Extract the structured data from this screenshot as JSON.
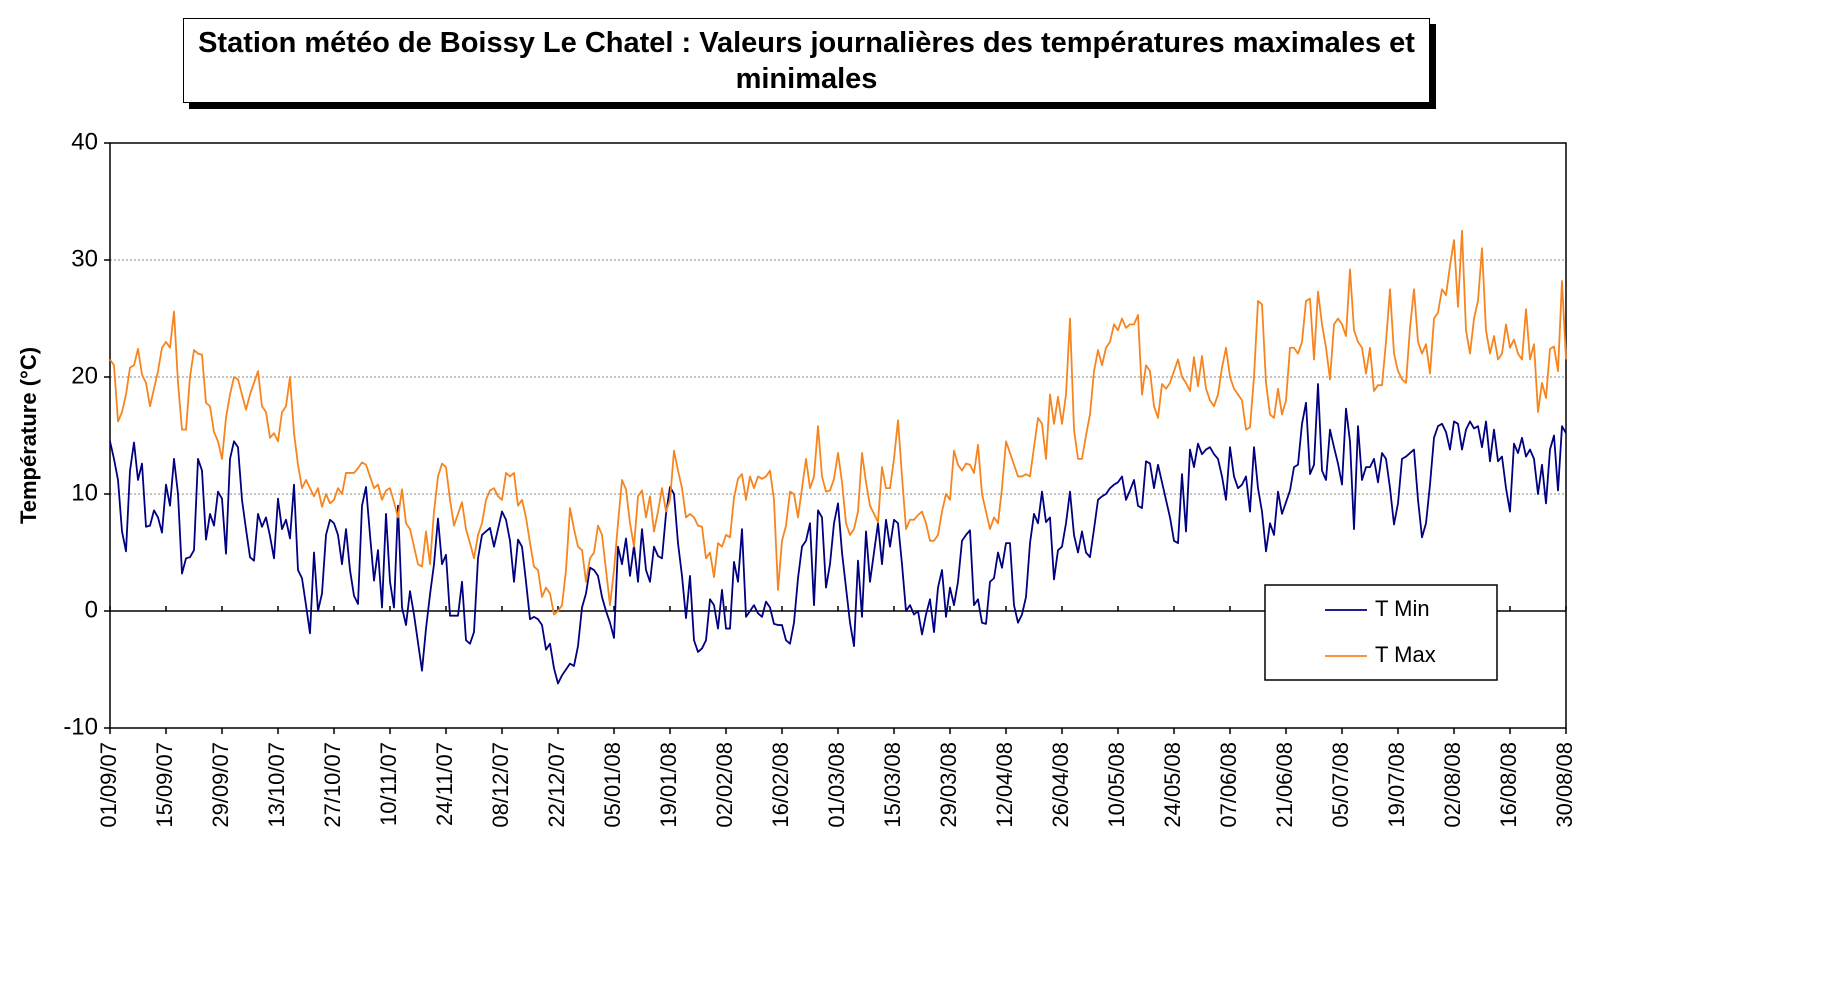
{
  "chart_data": {
    "type": "line",
    "title": "Station météo de Boissy Le Chatel : Valeurs journalières des températures maximales et minimales",
    "y_label": "Température (°C)",
    "ylim": [
      -10,
      40
    ],
    "yticks": [
      -10,
      0,
      10,
      20,
      30,
      40
    ],
    "grid": true,
    "legend": "lower right",
    "categories": [
      "01/09/07",
      null,
      null,
      null,
      null,
      null,
      null,
      null,
      null,
      null,
      null,
      null,
      null,
      null,
      "15/09/07",
      null,
      null,
      null,
      null,
      null,
      null,
      null,
      null,
      null,
      null,
      null,
      null,
      null,
      "29/09/07",
      null,
      null,
      null,
      null,
      null,
      null,
      null,
      null,
      null,
      null,
      null,
      null,
      null,
      "13/10/07",
      null,
      null,
      null,
      null,
      null,
      null,
      null,
      null,
      null,
      null,
      null,
      null,
      null,
      "27/10/07",
      null,
      null,
      null,
      null,
      null,
      null,
      null,
      null,
      null,
      null,
      null,
      null,
      null,
      "10/11/07",
      null,
      null,
      null,
      null,
      null,
      null,
      null,
      null,
      null,
      null,
      null,
      null,
      null,
      "24/11/07",
      null,
      null,
      null,
      null,
      null,
      null,
      null,
      null,
      null,
      null,
      null,
      null,
      null,
      "08/12/07",
      null,
      null,
      null,
      null,
      null,
      null,
      null,
      null,
      null,
      null,
      null,
      null,
      null,
      "22/12/07",
      null,
      null,
      null,
      null,
      null,
      null,
      null,
      null,
      null,
      null,
      null,
      null,
      null,
      "05/01/08",
      null,
      null,
      null,
      null,
      null,
      null,
      null,
      null,
      null,
      null,
      null,
      null,
      null,
      "19/01/08",
      null,
      null,
      null,
      null,
      null,
      null,
      null,
      null,
      null,
      null,
      null,
      null,
      null,
      "02/02/08",
      null,
      null,
      null,
      null,
      null,
      null,
      null,
      null,
      null,
      null,
      null,
      null,
      null,
      "16/02/08",
      null,
      null,
      null,
      null,
      null,
      null,
      null,
      null,
      null,
      null,
      null,
      null,
      null,
      "01/03/08",
      null,
      null,
      null,
      null,
      null,
      null,
      null,
      null,
      null,
      null,
      null,
      null,
      null,
      "15/03/08",
      null,
      null,
      null,
      null,
      null,
      null,
      null,
      null,
      null,
      null,
      null,
      null,
      null,
      "29/03/08",
      null,
      null,
      null,
      null,
      null,
      null,
      null,
      null,
      null,
      null,
      null,
      null,
      null,
      "12/04/08",
      null,
      null,
      null,
      null,
      null,
      null,
      null,
      null,
      null,
      null,
      null,
      null,
      null,
      "26/04/08",
      null,
      null,
      null,
      null,
      null,
      null,
      null,
      null,
      null,
      null,
      null,
      null,
      null,
      "10/05/08",
      null,
      null,
      null,
      null,
      null,
      null,
      null,
      null,
      null,
      null,
      null,
      null,
      null,
      "24/05/08",
      null,
      null,
      null,
      null,
      null,
      null,
      null,
      null,
      null,
      null,
      null,
      null,
      null,
      "07/06/08",
      null,
      null,
      null,
      null,
      null,
      null,
      null,
      null,
      null,
      null,
      null,
      null,
      null,
      "21/06/08",
      null,
      null,
      null,
      null,
      null,
      null,
      null,
      null,
      null,
      null,
      null,
      null,
      null,
      "05/07/08",
      null,
      null,
      null,
      null,
      null,
      null,
      null,
      null,
      null,
      null,
      null,
      null,
      null,
      "19/07/08",
      null,
      null,
      null,
      null,
      null,
      null,
      null,
      null,
      null,
      null,
      null,
      null,
      null,
      "02/08/08",
      null,
      null,
      null,
      null,
      null,
      null,
      null,
      null,
      null,
      null,
      null,
      null,
      null,
      "16/08/08",
      null,
      null,
      null,
      null,
      null,
      null,
      null,
      null,
      null,
      null,
      null,
      null,
      null,
      "30/08/08"
    ],
    "series": [
      {
        "name": "T Min",
        "color": "#000080",
        "values": [
          14.5,
          13,
          11.2,
          6.8,
          5.1,
          12,
          14.4,
          11.2,
          12.6,
          7.2,
          7.3,
          8.6,
          8,
          6.7,
          10.8,
          9,
          13,
          10,
          3.2,
          4.5,
          4.6,
          5.2,
          13,
          12,
          6.1,
          8.3,
          7.3,
          10.2,
          9.6,
          4.9,
          13,
          14.5,
          14,
          9.5,
          7,
          4.6,
          4.3,
          8.3,
          7.2,
          8,
          6.4,
          4.5,
          9.6,
          7,
          7.8,
          6.2,
          10.8,
          3.5,
          2.8,
          0.5,
          -1.9,
          5,
          0,
          1.5,
          6.5,
          7.8,
          7.5,
          6.5,
          4,
          7,
          3.5,
          1.3,
          0.6,
          9,
          10.6,
          6.5,
          2.6,
          5.2,
          0.3,
          8.3,
          2.5,
          0.3,
          9,
          0.3,
          -1.2,
          1.7,
          -0.3,
          -2.7,
          -5.1,
          -1.5,
          1.4,
          4,
          7.9,
          4,
          4.8,
          -0.4,
          -0.4,
          -0.4,
          2.5,
          -2.5,
          -2.8,
          -1.8,
          4.5,
          6.5,
          6.8,
          7.1,
          5.5,
          7,
          8.5,
          7.8,
          6,
          2.5,
          6.1,
          5.5,
          2.5,
          -0.7,
          -0.5,
          -0.7,
          -1.2,
          -3.3,
          -2.8,
          -4.9,
          -6.2,
          -5.5,
          -5,
          -4.5,
          -4.7,
          -3,
          0.3,
          1.5,
          3.7,
          3.5,
          3,
          1.2,
          0,
          -1,
          -2.3,
          5.5,
          4,
          6.2,
          3,
          5.6,
          2.5,
          7,
          3.5,
          2.5,
          5.5,
          4.7,
          4.5,
          8.3,
          10.6,
          10,
          5.8,
          3,
          -0.6,
          3,
          -2.5,
          -3.5,
          -3.2,
          -2.5,
          1,
          0.5,
          -1.5,
          1.8,
          -1.5,
          -1.5,
          4.2,
          2.5,
          7,
          -0.5,
          0,
          0.5,
          -0.2,
          -0.5,
          0.8,
          0.3,
          -1.1,
          -1.2,
          -1.2,
          -2.5,
          -2.8,
          -1,
          2.8,
          5.5,
          6,
          7.5,
          0.5,
          8.6,
          8,
          2,
          4,
          7.5,
          9.2,
          5,
          2,
          -1,
          -3,
          4.3,
          -0.5,
          6.8,
          2.5,
          5,
          7.5,
          4,
          7.8,
          5.5,
          7.8,
          7.5,
          4,
          0,
          0.5,
          -0.3,
          0,
          -2,
          -0.3,
          1,
          -1.8,
          2,
          3.5,
          -0.5,
          2,
          0.5,
          2.5,
          6,
          6.5,
          6.9,
          0.5,
          1,
          -1,
          -1.1,
          2.5,
          2.8,
          5,
          3.7,
          5.8,
          5.8,
          0.5,
          -1,
          -0.3,
          1.2,
          5.8,
          8.3,
          7.5,
          10.2,
          7.6,
          8,
          2.7,
          5.2,
          5.5,
          7.5,
          10.2,
          6.5,
          5,
          6.8,
          5,
          4.6,
          7,
          9.5,
          9.8,
          10,
          10.5,
          10.8,
          11,
          11.5,
          9.5,
          10.3,
          11.2,
          9,
          8.8,
          12.8,
          12.6,
          10.5,
          12.5,
          11,
          9.5,
          8,
          6,
          5.8,
          11.7,
          6.8,
          13.8,
          12.3,
          14.3,
          13.4,
          13.8,
          14,
          13.4,
          13,
          11.5,
          9.5,
          14,
          11.5,
          10.5,
          10.8,
          11.5,
          8.5,
          14,
          10.5,
          8.5,
          5.1,
          7.5,
          6.5,
          10.2,
          8.3,
          9.3,
          10.3,
          12.3,
          12.5,
          16,
          17.8,
          11.7,
          12.5,
          19.4,
          12,
          11.2,
          15.5,
          14,
          12.6,
          10.8,
          17.3,
          14.5,
          7,
          15.8,
          11.2,
          12.3,
          12.3,
          13,
          11,
          13.5,
          13,
          10.5,
          7.4,
          9.2,
          13,
          13.2,
          13.5,
          13.8,
          9.5,
          6.3,
          7.5,
          10.8,
          14.8,
          15.8,
          16,
          15.3,
          13.8,
          16.2,
          16,
          13.8,
          15.5,
          16.2,
          15.6,
          15.8,
          14,
          16.2,
          12.8,
          15.5,
          12.8,
          13.2,
          10.5,
          8.5,
          14.3,
          13.5,
          14.8,
          13.2,
          13.8,
          13,
          10,
          12.5,
          9.2,
          13.8,
          15,
          10.3,
          15.8,
          15.2
        ]
      },
      {
        "name": "T Max",
        "color": "#f7851f",
        "values": [
          21.5,
          21,
          16.2,
          17,
          18.5,
          20.8,
          21,
          22.4,
          20.2,
          19.5,
          17.5,
          19,
          20.5,
          22.5,
          23,
          22.5,
          25.6,
          19.5,
          15.5,
          15.5,
          20,
          22.3,
          22,
          21.9,
          17.8,
          17.5,
          15.3,
          14.5,
          13,
          16.5,
          18.5,
          20,
          19.8,
          18.5,
          17.2,
          18.5,
          19.5,
          20.5,
          17.5,
          17,
          14.8,
          15.2,
          14.5,
          17,
          17.5,
          20,
          15.2,
          12.5,
          10.5,
          11.2,
          10.5,
          9.8,
          10.5,
          8.9,
          10,
          9.2,
          9.5,
          10.5,
          10,
          11.8,
          11.8,
          11.8,
          12.2,
          12.7,
          12.5,
          11.5,
          10.5,
          10.8,
          9.5,
          10.3,
          10.5,
          9.3,
          8,
          10.4,
          7.5,
          7,
          5.5,
          4,
          3.8,
          6.8,
          4,
          8.5,
          11.5,
          12.6,
          12.3,
          9.5,
          7.3,
          8.3,
          9.3,
          7,
          5.8,
          4.5,
          6.5,
          7.5,
          9.5,
          10.3,
          10.5,
          9.8,
          9.5,
          11.8,
          11.5,
          11.8,
          9,
          9.5,
          8,
          5.8,
          3.8,
          3.5,
          1.2,
          2,
          1.5,
          -0.3,
          0,
          0.5,
          3.5,
          8.8,
          7,
          5.5,
          5.2,
          2.5,
          4.5,
          5,
          7.3,
          6.5,
          3.5,
          0.5,
          3.5,
          7.5,
          11.2,
          10.4,
          7.5,
          5.5,
          9.8,
          10.3,
          8,
          9.8,
          6.8,
          8.5,
          10.5,
          8.5,
          9.5,
          13.7,
          12,
          10.5,
          8,
          8.3,
          8,
          7.3,
          7.2,
          4.5,
          5,
          2.9,
          5.8,
          5.5,
          6.5,
          6.3,
          9.7,
          11.3,
          11.7,
          9.5,
          11.5,
          10.5,
          11.5,
          11.3,
          11.5,
          12,
          9.5,
          1.8,
          6,
          7.3,
          10.2,
          10,
          8,
          10.5,
          13,
          10.5,
          11.5,
          15.8,
          11.5,
          10.2,
          10.3,
          11.3,
          13.5,
          11,
          7.5,
          6.5,
          7,
          8.5,
          13.5,
          11,
          9,
          8.3,
          7.6,
          12.3,
          10.5,
          10.5,
          13,
          16.3,
          11.5,
          7,
          7.8,
          7.8,
          8.2,
          8.5,
          7.5,
          6,
          6,
          6.5,
          8.5,
          10,
          9.5,
          13.7,
          12.5,
          12,
          12.6,
          12.5,
          11.8,
          14.2,
          10,
          8.5,
          7,
          8,
          7.5,
          10.5,
          14.5,
          13.5,
          12.5,
          11.5,
          11.5,
          11.7,
          11.5,
          14,
          16.5,
          16,
          13,
          18.5,
          16,
          18.3,
          16,
          18.5,
          25,
          15.5,
          13,
          13,
          15,
          16.8,
          20.5,
          22.3,
          21,
          22.5,
          23,
          24.5,
          24,
          25,
          24.2,
          24.5,
          24.5,
          25.3,
          18.5,
          21,
          20.5,
          17.5,
          16.5,
          19.4,
          19,
          19.5,
          20.5,
          21.5,
          20,
          19.5,
          18.8,
          21.7,
          19.2,
          21.8,
          19,
          18,
          17.5,
          18.5,
          20.8,
          22.5,
          20,
          19,
          18.5,
          18,
          15.5,
          15.7,
          20,
          26.5,
          26.2,
          19.5,
          16.8,
          16.5,
          19,
          16.8,
          18,
          22.5,
          22.5,
          22,
          23,
          26.5,
          26.7,
          21.5,
          27.3,
          24.5,
          22.5,
          19.8,
          24.5,
          25,
          24.5,
          23.5,
          29.2,
          24,
          23,
          22.5,
          20.3,
          22.5,
          18.8,
          19.3,
          19.3,
          23,
          27.5,
          22,
          20.5,
          19.8,
          19.5,
          24.2,
          27.5,
          23,
          22,
          22.8,
          20.3,
          25,
          25.5,
          27.5,
          27,
          29.5,
          31.7,
          26,
          32.5,
          24,
          22,
          25,
          26.5,
          31,
          24,
          22,
          23.5,
          21.5,
          22,
          24.5,
          22.5,
          23.2,
          22,
          21.5,
          25.8,
          21.5,
          22.8,
          17,
          19.5,
          18.2,
          22.4,
          22.6,
          20.5,
          28.2,
          21.5
        ]
      }
    ]
  }
}
